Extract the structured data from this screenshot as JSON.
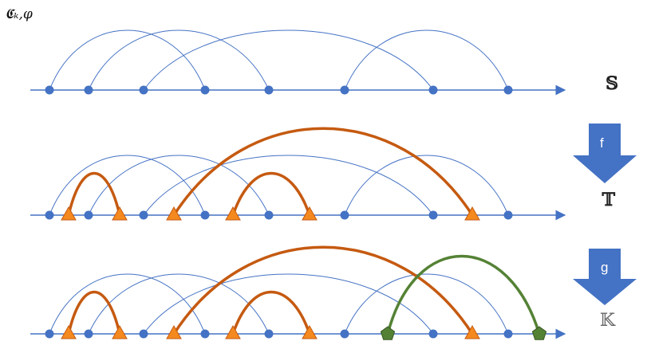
{
  "corner_label": "𝕮ₖ,φ",
  "rows": [
    {
      "name": "row-s",
      "label": "𝕊"
    },
    {
      "name": "row-t",
      "label": "𝕋"
    },
    {
      "name": "row-k",
      "label": "𝕂"
    }
  ],
  "arrows": [
    {
      "name": "f-arrow",
      "label": "f"
    },
    {
      "name": "g-arrow",
      "label": "g"
    }
  ],
  "colors": {
    "base": "#4472C4",
    "orange": "#E46C0A",
    "orange_arc": "#C55A11",
    "green": "#548235",
    "green_node": "#548235",
    "arrow": "#4472C4"
  }
}
